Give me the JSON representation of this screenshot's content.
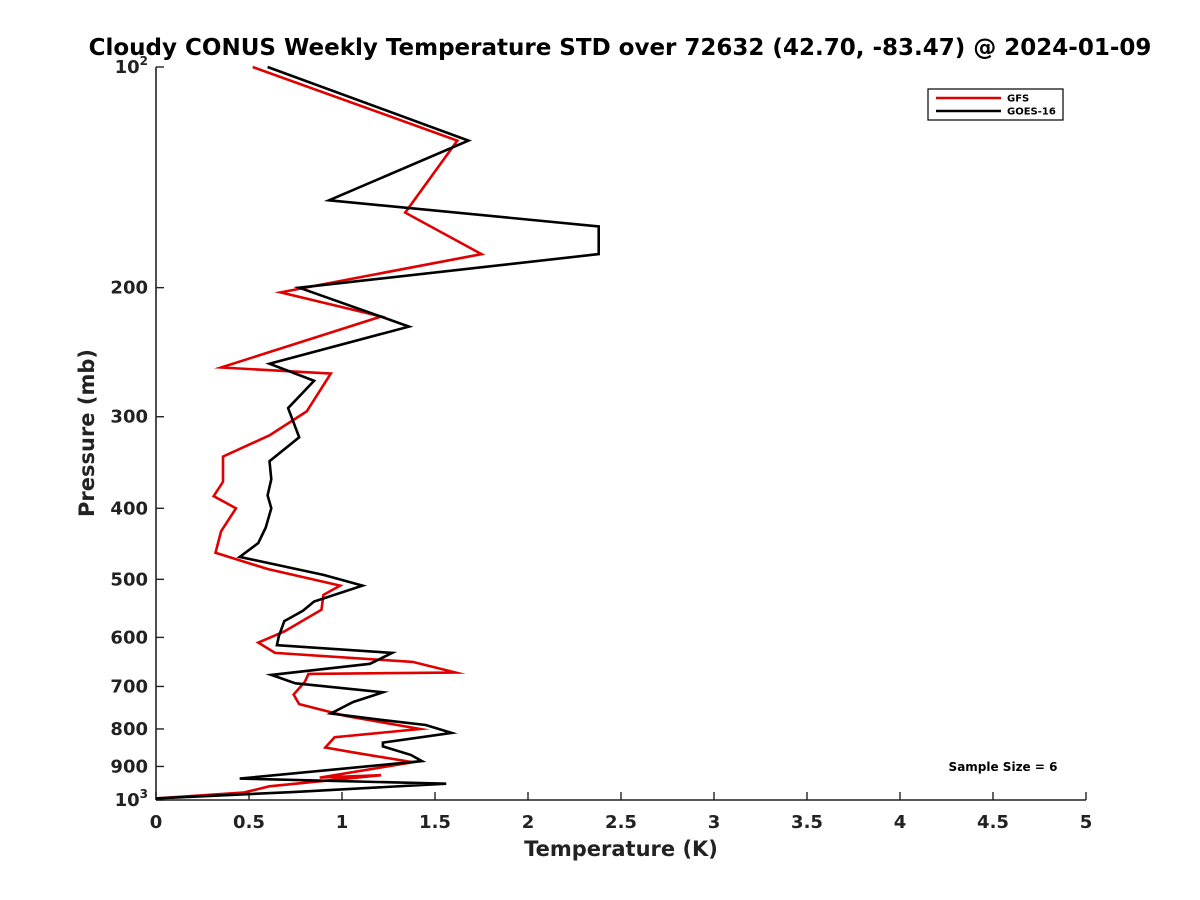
{
  "chart_data": {
    "type": "line",
    "title": "Cloudy CONUS Weekly Temperature STD over 72632 (42.70, -83.47) @ 2024-01-09",
    "xlabel": "Temperature (K)",
    "ylabel": "Pressure (mb)",
    "xlim": [
      0,
      5
    ],
    "ylim": [
      1000,
      100
    ],
    "yscale": "log",
    "y_reversed": true,
    "x_ticks": [
      "0",
      "0.5",
      "1",
      "1.5",
      "2",
      "2.5",
      "3",
      "3.5",
      "4",
      "4.5",
      "5"
    ],
    "y_ticks": [
      {
        "value": 100,
        "base": "10",
        "sup": "2"
      },
      {
        "value": 200,
        "label": "200"
      },
      {
        "value": 300,
        "label": "300"
      },
      {
        "value": 400,
        "label": "400"
      },
      {
        "value": 500,
        "label": "500"
      },
      {
        "value": 600,
        "label": "600"
      },
      {
        "value": 700,
        "label": "700"
      },
      {
        "value": 800,
        "label": "800"
      },
      {
        "value": 900,
        "label": "900"
      },
      {
        "value": 1000,
        "base": "10",
        "sup": "3"
      }
    ],
    "legend_position": "top-right",
    "grid": false,
    "series": [
      {
        "name": "GFS",
        "color": "#e00000",
        "x": [
          0.52,
          1.62,
          1.34,
          1.75,
          0.67,
          1.21,
          0.35,
          0.94,
          0.81,
          0.61,
          0.36,
          0.36,
          0.31,
          0.43,
          0.35,
          0.32,
          0.6,
          0.99,
          0.9,
          0.89,
          0.69,
          0.55,
          0.64,
          1.38,
          1.61,
          0.82,
          0.8,
          0.74,
          0.77,
          1.02,
          1.42,
          0.96,
          0.91,
          1.07,
          1.38,
          0.88,
          1.21,
          0.61,
          0.47,
          0.0
        ],
        "y": [
          100,
          126,
          158,
          180,
          203,
          219,
          257,
          262,
          295,
          318,
          340,
          368,
          385,
          400,
          430,
          460,
          484,
          510,
          525,
          550,
          589,
          610,
          630,
          648,
          670,
          673,
          690,
          718,
          740,
          768,
          800,
          821,
          848,
          862,
          888,
          932,
          925,
          958,
          977,
          995
        ]
      },
      {
        "name": "GOES-16",
        "color": "#000000",
        "x": [
          0.6,
          1.68,
          0.93,
          2.38,
          2.38,
          0.77,
          1.36,
          0.61,
          0.85,
          0.71,
          0.77,
          0.61,
          0.62,
          0.6,
          0.62,
          0.59,
          0.55,
          0.45,
          0.9,
          1.11,
          0.85,
          0.79,
          0.69,
          0.66,
          0.65,
          1.27,
          1.15,
          0.62,
          0.75,
          1.22,
          1.06,
          0.94,
          1.22,
          1.45,
          1.59,
          1.22,
          1.22,
          1.37,
          1.43,
          0.45,
          1.56,
          0.75,
          0.0
        ],
        "y": [
          100,
          126,
          152,
          165,
          180,
          200,
          226,
          254,
          268,
          292,
          320,
          345,
          365,
          384,
          400,
          425,
          446,
          466,
          493,
          510,
          536,
          552,
          570,
          598,
          615,
          630,
          652,
          675,
          693,
          713,
          735,
          762,
          778,
          790,
          810,
          835,
          845,
          868,
          885,
          935,
          950,
          975,
          995
        ]
      }
    ],
    "annotation": "Sample Size = 6"
  }
}
